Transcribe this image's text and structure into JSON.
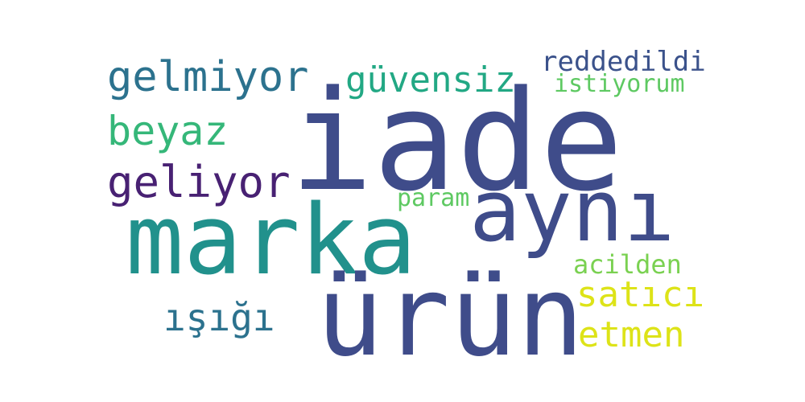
{
  "words": [
    {
      "id": "iade",
      "text": "iade",
      "color": "#3f4c8a"
    },
    {
      "id": "marka",
      "text": "marka",
      "color": "#21918c"
    },
    {
      "id": "urun",
      "text": "ürün",
      "color": "#3f4c8a"
    },
    {
      "id": "ayni",
      "text": "aynı",
      "color": "#3f4c8a"
    },
    {
      "id": "gelmiyor",
      "text": "gelmiyor",
      "color": "#2c728e"
    },
    {
      "id": "guvensiz",
      "text": "güvensiz",
      "color": "#22a884"
    },
    {
      "id": "reddedildi",
      "text": "reddedildi",
      "color": "#3b528b"
    },
    {
      "id": "istiyorum",
      "text": "istiyorum",
      "color": "#5ec962"
    },
    {
      "id": "beyaz",
      "text": "beyaz",
      "color": "#35b779"
    },
    {
      "id": "geliyor",
      "text": "geliyor",
      "color": "#482173"
    },
    {
      "id": "param",
      "text": "param",
      "color": "#5ec962"
    },
    {
      "id": "acilden",
      "text": "acilden",
      "color": "#7ad151"
    },
    {
      "id": "satici",
      "text": "satıcı",
      "color": "#dde318"
    },
    {
      "id": "isigi",
      "text": "ışığı",
      "color": "#2c728e"
    },
    {
      "id": "etmen",
      "text": "etmen",
      "color": "#dde318"
    }
  ]
}
